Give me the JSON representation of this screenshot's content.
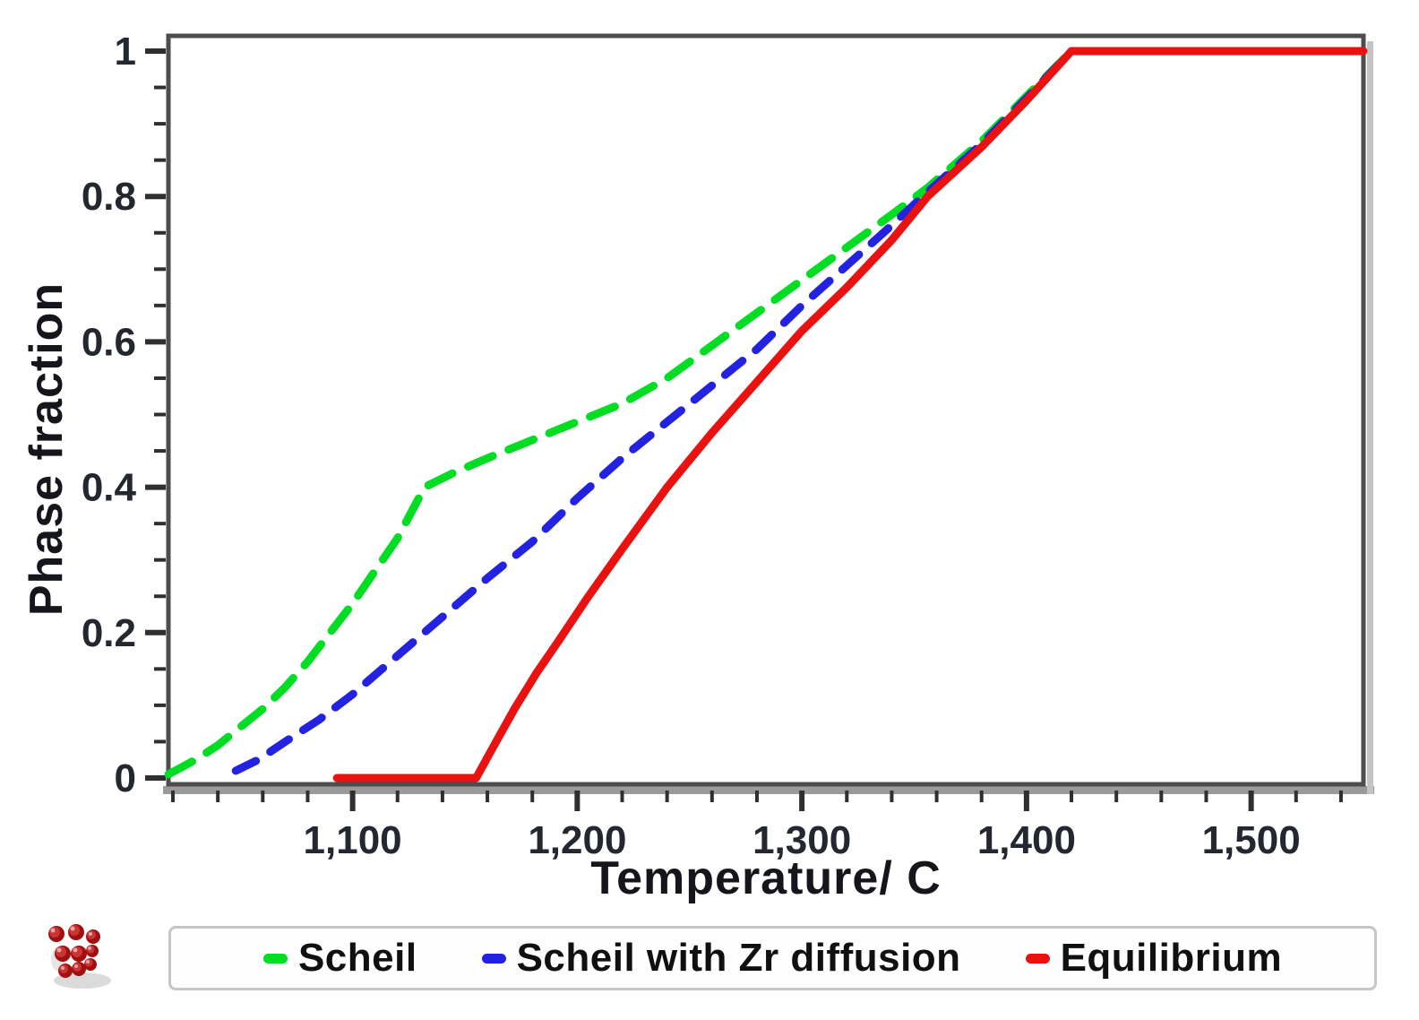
{
  "chart_data": {
    "type": "line",
    "title": "",
    "xlabel": "Temperature/ C",
    "ylabel": "Phase fraction",
    "xlim": [
      1018,
      1550
    ],
    "ylim": [
      0,
      1
    ],
    "grid": "off",
    "legend_position": "bottom",
    "x_ticks": {
      "major_values": [
        1100,
        1200,
        1300,
        1400,
        1500
      ],
      "major_labels": [
        "1,100",
        "1,200",
        "1,300",
        "1,400",
        "1,500"
      ],
      "minor_step": 20
    },
    "y_ticks": {
      "major_values": [
        0,
        0.2,
        0.4,
        0.6,
        0.8,
        1
      ],
      "major_labels": [
        "0",
        "0.2",
        "0.4",
        "0.6",
        "0.8",
        "1"
      ],
      "minor_step": 0.05
    },
    "series": [
      {
        "name": "Scheil",
        "color": "#00dd22",
        "style": "dashed",
        "points": [
          [
            1018,
            0.005
          ],
          [
            1030,
            0.025
          ],
          [
            1040,
            0.045
          ],
          [
            1050,
            0.07
          ],
          [
            1060,
            0.095
          ],
          [
            1070,
            0.125
          ],
          [
            1080,
            0.16
          ],
          [
            1090,
            0.2
          ],
          [
            1100,
            0.24
          ],
          [
            1110,
            0.285
          ],
          [
            1120,
            0.33
          ],
          [
            1132,
            0.4
          ],
          [
            1145,
            0.42
          ],
          [
            1160,
            0.44
          ],
          [
            1180,
            0.465
          ],
          [
            1200,
            0.49
          ],
          [
            1220,
            0.515
          ],
          [
            1240,
            0.55
          ],
          [
            1260,
            0.595
          ],
          [
            1280,
            0.64
          ],
          [
            1300,
            0.685
          ],
          [
            1320,
            0.73
          ],
          [
            1340,
            0.775
          ],
          [
            1356,
            0.812
          ],
          [
            1380,
            0.876
          ],
          [
            1400,
            0.938
          ],
          [
            1420,
            1.0
          ]
        ]
      },
      {
        "name": "Scheil with Zr diffusion",
        "color": "#2222e0",
        "style": "dashed",
        "points": [
          [
            1048,
            0.01
          ],
          [
            1058,
            0.025
          ],
          [
            1070,
            0.05
          ],
          [
            1085,
            0.08
          ],
          [
            1100,
            0.115
          ],
          [
            1115,
            0.155
          ],
          [
            1130,
            0.195
          ],
          [
            1145,
            0.235
          ],
          [
            1160,
            0.275
          ],
          [
            1180,
            0.325
          ],
          [
            1200,
            0.385
          ],
          [
            1220,
            0.44
          ],
          [
            1240,
            0.49
          ],
          [
            1260,
            0.54
          ],
          [
            1280,
            0.59
          ],
          [
            1300,
            0.65
          ],
          [
            1320,
            0.705
          ],
          [
            1337,
            0.752
          ],
          [
            1356,
            0.806
          ],
          [
            1380,
            0.872
          ],
          [
            1400,
            0.935
          ],
          [
            1420,
            1.0
          ]
        ]
      },
      {
        "name": "Equilibrium",
        "color": "#ea1111",
        "style": "solid",
        "points": [
          [
            1093,
            0.0
          ],
          [
            1155,
            0.0
          ],
          [
            1163,
            0.045
          ],
          [
            1172,
            0.095
          ],
          [
            1182,
            0.145
          ],
          [
            1192,
            0.19
          ],
          [
            1205,
            0.25
          ],
          [
            1220,
            0.315
          ],
          [
            1240,
            0.4
          ],
          [
            1260,
            0.475
          ],
          [
            1280,
            0.545
          ],
          [
            1300,
            0.615
          ],
          [
            1320,
            0.675
          ],
          [
            1340,
            0.74
          ],
          [
            1356,
            0.8
          ],
          [
            1380,
            0.868
          ],
          [
            1400,
            0.932
          ],
          [
            1420,
            1.0
          ],
          [
            1550,
            1.0
          ]
        ]
      }
    ],
    "colors": {
      "frame": "#4d4d4d",
      "frame_bevel": "#9a9a9a",
      "tick": "#2f2f2f",
      "tick_label": "#232730",
      "logo_red": "#b41414"
    }
  }
}
